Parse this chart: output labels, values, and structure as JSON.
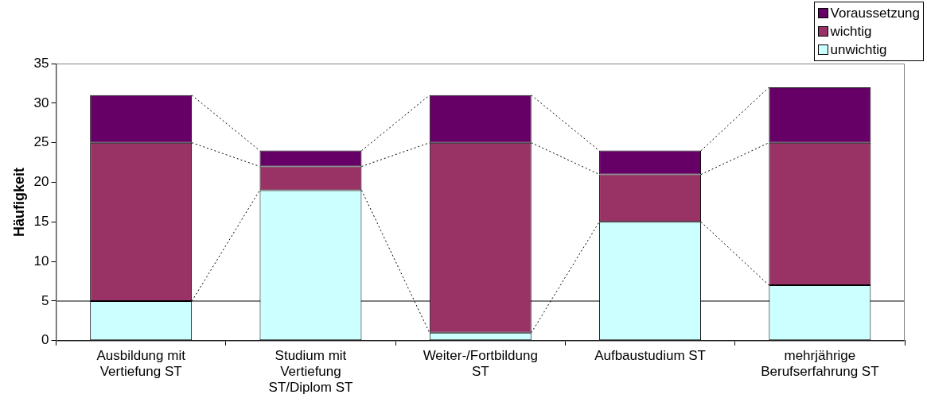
{
  "chart_data": {
    "type": "bar",
    "stacked": true,
    "ylabel": "Häufigkeit",
    "categories": [
      "Ausbildung mit Vertiefung ST",
      "Studium mit Vertiefung ST/Diplom ST",
      "Weiter-/Fortbildung ST",
      "Aufbaustudium ST",
      "mehrjährige Berufserfahrung ST"
    ],
    "series": [
      {
        "name": "unwichtig",
        "color": "#ccffff",
        "values": [
          5,
          19,
          1,
          15,
          7
        ]
      },
      {
        "name": "wichtig",
        "color": "#993366",
        "values": [
          20,
          3,
          24,
          6,
          18
        ]
      },
      {
        "name": "Voraussetzung",
        "color": "#660066",
        "values": [
          6,
          2,
          6,
          3,
          7
        ]
      }
    ],
    "ylim": [
      0,
      35
    ],
    "yticks": [
      0,
      5,
      10,
      15,
      20,
      25,
      30,
      35
    ],
    "grid": false,
    "legend": "top right",
    "ref_lines": [
      {
        "axis": "y",
        "value": 5,
        "color": "#000000"
      }
    ]
  }
}
